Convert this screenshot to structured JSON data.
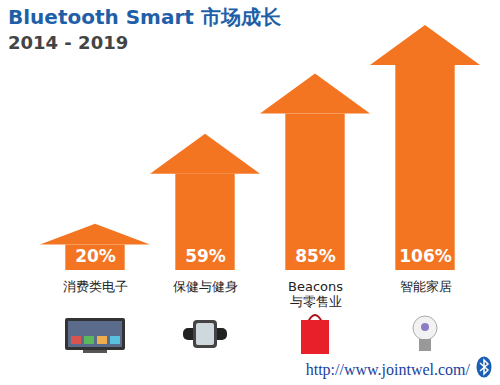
{
  "chart_data": {
    "type": "bar",
    "title": "Bluetooth Smart 市场成长",
    "subtitle": "2014 - 2019",
    "categories": [
      "消费类电子",
      "保健与健身",
      "Beacons 与零售业",
      "智能家居"
    ],
    "values": [
      20,
      59,
      85,
      106
    ],
    "value_labels": [
      "20%",
      "59%",
      "85%",
      "106%"
    ],
    "data_labels": true,
    "tick_labels": false,
    "color": "#f47521",
    "annotations": [
      "http://www.jointwel.com/"
    ]
  }
}
